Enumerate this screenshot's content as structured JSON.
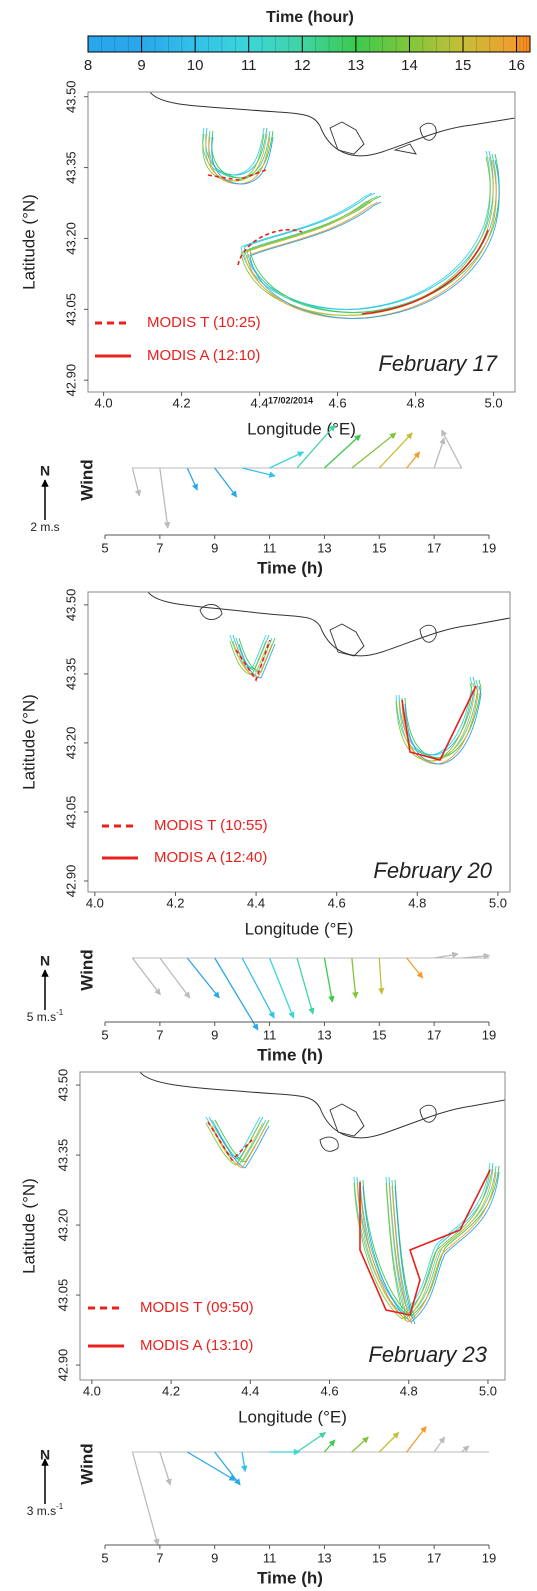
{
  "chart_data": [
    {
      "type": "colorbar",
      "title": "Time (hour)",
      "xlim": [
        8,
        16.25
      ],
      "xticks": [
        8,
        9,
        10,
        11,
        12,
        13,
        14,
        15,
        16
      ],
      "colors": [
        "#2aa7ea",
        "#33c0ea",
        "#3bd6d8",
        "#40d3a4",
        "#3cc94c",
        "#80c63c",
        "#c6be38",
        "#f29b2e",
        "#ff8515"
      ],
      "other_color": "#bbbbbb"
    },
    {
      "type": "map",
      "xlabel": "Longitude (°E)",
      "ylabel": "Latitude (°N)",
      "xlim": [
        3.96,
        5.055
      ],
      "ylim": [
        42.875,
        43.51
      ],
      "xticks": [
        {
          "value": 4,
          "label": "4.0"
        },
        4.2,
        4.4,
        4.6,
        4.8,
        {
          "value": 5,
          "label": "5.0"
        }
      ],
      "yticks": [
        {
          "value": 42.9,
          "label": "42.90"
        },
        {
          "value": 43.05,
          "label": "43.05"
        },
        {
          "value": 43.2,
          "label": "43.20"
        },
        {
          "value": 43.35,
          "label": "43.35"
        },
        {
          "value": 43.5,
          "label": "43.50"
        }
      ],
      "date_label": "February 17",
      "stamp": "17/02/2014",
      "legend": [
        {
          "name": "MODIS T (10:25)",
          "color": "#e8201e",
          "dashed": true
        },
        {
          "name": "MODIS A (12:10)",
          "color": "#e8201e",
          "dashed": false
        }
      ]
    },
    {
      "type": "wind",
      "ylabel": "Wind",
      "north": "N",
      "scale": {
        "value": 2,
        "label": "2 m.s"
      },
      "xlabel": "Time (h)",
      "xlim": [
        5,
        19
      ],
      "xticks": [
        5,
        7,
        9,
        11,
        13,
        15,
        17,
        19
      ],
      "x": [
        6,
        7,
        8,
        9,
        10,
        11,
        12,
        13,
        14,
        15,
        16,
        17,
        18
      ],
      "u": [
        0.35,
        0.4,
        0.5,
        1.1,
        1.65,
        1.7,
        1.9,
        1.8,
        2.2,
        1.65,
        0.65,
        0.5,
        -1.0
      ],
      "v": [
        -1.4,
        -3.0,
        -1.1,
        -1.45,
        -0.4,
        0.8,
        2.15,
        1.65,
        1.75,
        1.75,
        0.8,
        1.5,
        1.9
      ]
    },
    {
      "type": "map",
      "xlabel": "Longitude (°E)",
      "ylabel": "Latitude (°N)",
      "xlim": [
        3.983,
        5.03
      ],
      "ylim": [
        42.876,
        43.528
      ],
      "xticks": [
        {
          "value": 4,
          "label": "4.0"
        },
        4.2,
        4.4,
        4.6,
        4.8,
        {
          "value": 5,
          "label": "5.0"
        }
      ],
      "yticks": [
        {
          "value": 42.9,
          "label": "42.90"
        },
        {
          "value": 43.05,
          "label": "43.05"
        },
        {
          "value": 43.2,
          "label": "43.20"
        },
        {
          "value": 43.35,
          "label": "43.35"
        },
        {
          "value": 43.5,
          "label": "43.50"
        }
      ],
      "date_label": "February 20",
      "legend": [
        {
          "name": "MODIS T (10:55)",
          "color": "#e8201e",
          "dashed": true
        },
        {
          "name": "MODIS A (12:40)",
          "color": "#e8201e",
          "dashed": false
        }
      ]
    },
    {
      "type": "wind",
      "ylabel": "Wind",
      "north": "N",
      "scale": {
        "value": 5,
        "label": "5 m.s",
        "sup": "-1"
      },
      "xlabel": "Time (h)",
      "xlim": [
        5,
        19
      ],
      "xticks": [
        5,
        7,
        9,
        11,
        13,
        15,
        17,
        19
      ],
      "x": [
        6,
        7,
        8,
        9,
        10,
        11,
        12,
        13,
        14,
        15,
        16,
        17,
        18
      ],
      "u": [
        3.5,
        3.75,
        4.0,
        5.4,
        4.0,
        3.0,
        2.0,
        1.0,
        0.5,
        0.3,
        2.0,
        3.0,
        3.5
      ],
      "v": [
        -4.6,
        -5.0,
        -5.0,
        -9.0,
        -7.5,
        -7.5,
        -7.0,
        -5.5,
        -5.0,
        -4.5,
        -2.5,
        0.5,
        0.3
      ]
    },
    {
      "type": "map",
      "xlabel": "Longitude (°E)",
      "ylabel": "Latitude (°N)",
      "xlim": [
        3.97,
        5.043
      ],
      "ylim": [
        42.868,
        43.528
      ],
      "xticks": [
        {
          "value": 4,
          "label": "4.0"
        },
        4.2,
        4.4,
        4.6,
        4.8,
        {
          "value": 5,
          "label": "5.0"
        }
      ],
      "yticks": [
        {
          "value": 42.9,
          "label": "42.90"
        },
        {
          "value": 43.05,
          "label": "43.05"
        },
        {
          "value": 43.2,
          "label": "43.20"
        },
        {
          "value": 43.35,
          "label": "43.35"
        },
        {
          "value": 43.5,
          "label": "43.50"
        }
      ],
      "date_label": "February 23",
      "legend": [
        {
          "name": "MODIS T (09:50)",
          "color": "#e8201e",
          "dashed": true
        },
        {
          "name": "MODIS A (13:10)",
          "color": "#e8201e",
          "dashed": false
        }
      ]
    },
    {
      "type": "wind",
      "ylabel": "Wind",
      "north": "N",
      "scale": {
        "value": 3,
        "label": "3 m.s",
        "sup": "-1"
      },
      "xlabel": "Time (h)",
      "xlim": [
        5,
        19
      ],
      "xticks": [
        5,
        7,
        9,
        11,
        13,
        15,
        17,
        19
      ],
      "x": [
        6,
        7,
        8,
        9,
        10,
        11,
        12,
        13,
        14,
        15,
        16,
        17,
        18
      ],
      "u": [
        1.7,
        0.7,
        3.2,
        1.7,
        0.2,
        2.0,
        1.9,
        0.7,
        1.1,
        1.3,
        1.3,
        0.7,
        0.5
      ],
      "v": [
        -6.2,
        -2.2,
        -1.9,
        -2.2,
        -1.3,
        0.0,
        1.3,
        0.8,
        1.0,
        1.3,
        1.7,
        1.0,
        0.4
      ]
    }
  ]
}
